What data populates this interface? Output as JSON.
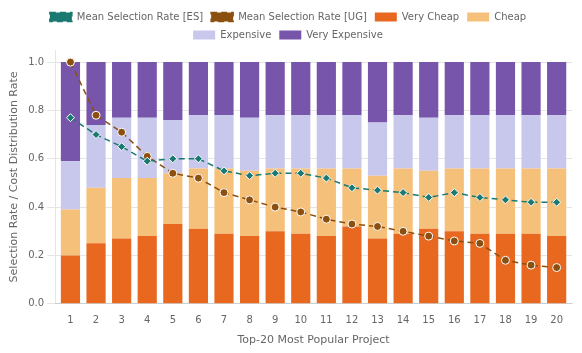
{
  "chart_data": {
    "type": "bar",
    "stacked": true,
    "xlabel": "Top-20 Most Popular Project",
    "ylabel": "Selection Rate / Cost Distribution Rate",
    "x": [
      1,
      2,
      3,
      4,
      5,
      6,
      7,
      8,
      9,
      10,
      11,
      12,
      13,
      14,
      15,
      16,
      17,
      18,
      19,
      20
    ],
    "xlim": [
      0.4,
      20.6
    ],
    "xticks": [
      1,
      2,
      3,
      4,
      5,
      6,
      7,
      8,
      9,
      10,
      11,
      12,
      13,
      14,
      15,
      16,
      17,
      18,
      19,
      20
    ],
    "ylim": [
      0.0,
      1.05
    ],
    "yticks": [
      {
        "value": 0.0,
        "label": "0.0"
      },
      0.2,
      0.4,
      0.6,
      0.8,
      {
        "value": 1.0,
        "label": "1.0"
      }
    ],
    "grid": true,
    "legend": "top",
    "series": [
      {
        "name": "Very Cheap",
        "type": "bar",
        "color": "#E86820",
        "values": [
          0.2,
          0.25,
          0.27,
          0.28,
          0.33,
          0.31,
          0.29,
          0.28,
          0.3,
          0.29,
          0.28,
          0.32,
          0.27,
          0.29,
          0.31,
          0.3,
          0.29,
          0.29,
          0.29,
          0.28
        ]
      },
      {
        "name": "Cheap",
        "type": "bar",
        "color": "#F5C07A",
        "values": [
          0.19,
          0.23,
          0.25,
          0.24,
          0.21,
          0.25,
          0.27,
          0.27,
          0.26,
          0.27,
          0.28,
          0.24,
          0.26,
          0.27,
          0.24,
          0.26,
          0.27,
          0.27,
          0.27,
          0.28
        ]
      },
      {
        "name": "Expensive",
        "type": "bar",
        "color": "#C8C8EC",
        "values": [
          0.2,
          0.26,
          0.25,
          0.25,
          0.22,
          0.22,
          0.22,
          0.22,
          0.22,
          0.22,
          0.22,
          0.22,
          0.22,
          0.22,
          0.22,
          0.22,
          0.22,
          0.22,
          0.22,
          0.22
        ]
      },
      {
        "name": "Very Expensive",
        "type": "bar",
        "color": "#7755AA",
        "values": [
          0.41,
          0.26,
          0.23,
          0.23,
          0.24,
          0.22,
          0.22,
          0.23,
          0.22,
          0.22,
          0.22,
          0.22,
          0.25,
          0.22,
          0.23,
          0.22,
          0.22,
          0.22,
          0.22,
          0.22
        ]
      },
      {
        "name": "Mean Selection Rate [ES]",
        "type": "line",
        "color": "#1A7A72",
        "marker": "diamond",
        "line_style": "dashed",
        "values": [
          0.77,
          0.7,
          0.65,
          0.59,
          0.6,
          0.6,
          0.55,
          0.53,
          0.54,
          0.54,
          0.52,
          0.48,
          0.47,
          0.46,
          0.44,
          0.46,
          0.44,
          0.43,
          0.42,
          0.42
        ]
      },
      {
        "name": "Mean Selection Rate [UG]",
        "type": "line",
        "color": "#8B5010",
        "marker": "circle",
        "line_style": "dashed",
        "values": [
          1.0,
          0.78,
          0.71,
          0.61,
          0.54,
          0.52,
          0.46,
          0.43,
          0.4,
          0.38,
          0.35,
          0.33,
          0.32,
          0.3,
          0.28,
          0.26,
          0.25,
          0.18,
          0.16,
          0.15
        ]
      }
    ]
  }
}
